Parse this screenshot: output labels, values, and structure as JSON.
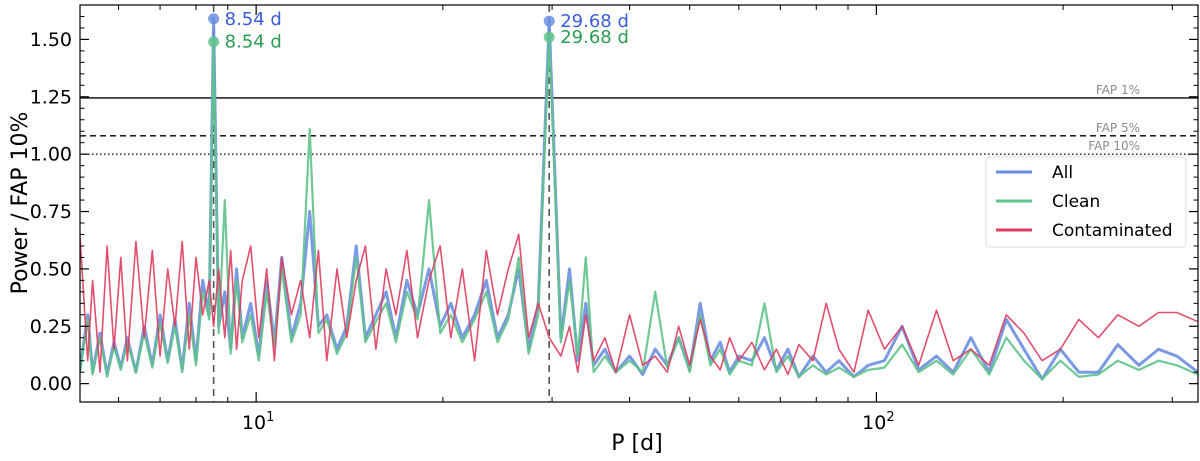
{
  "chart_data": {
    "type": "line",
    "xlabel": "P [d]",
    "ylabel": "Power / FAP 10%",
    "xscale": "log",
    "xlim": [
      5.2,
      330
    ],
    "ylim": [
      -0.08,
      1.65
    ],
    "xticks": [
      {
        "value": 10,
        "mantissa": "10",
        "exponent": "1"
      },
      {
        "value": 100,
        "mantissa": "10",
        "exponent": "2"
      }
    ],
    "yticks": [
      "0.00",
      "0.25",
      "0.50",
      "0.75",
      "1.00",
      "1.25",
      "1.50"
    ],
    "yticks_values": [
      0,
      0.25,
      0.5,
      0.75,
      1.0,
      1.25,
      1.5
    ],
    "grid": false,
    "legend_position": "right",
    "colors": {
      "All": "#6b8fe0",
      "Clean": "#5fc38a",
      "Contaminated": "#df3b5e",
      "fap": "#000000",
      "fap_label": "#8a8a8a",
      "peak_blue": "#3a5fd8",
      "peak_green": "#2a9d55"
    },
    "fap_lines": [
      {
        "label": "FAP 1%",
        "y": 1.245,
        "style": "solid"
      },
      {
        "label": "FAP 5%",
        "y": 1.08,
        "style": "dashed"
      },
      {
        "label": "FAP 10%",
        "y": 1.0,
        "style": "dotted"
      }
    ],
    "vlines": [
      8.54,
      29.68
    ],
    "peaks": [
      {
        "series": "All",
        "x": 8.54,
        "y": 1.59,
        "label": "8.54 d"
      },
      {
        "series": "Clean",
        "x": 8.54,
        "y": 1.49,
        "label": "8.54 d"
      },
      {
        "series": "All",
        "x": 29.68,
        "y": 1.58,
        "label": "29.68 d"
      },
      {
        "series": "Clean",
        "x": 29.68,
        "y": 1.51,
        "label": "29.68 d"
      }
    ],
    "series": [
      {
        "name": "All",
        "color": "#6b8fe0",
        "x": [
          5.2,
          5.35,
          5.45,
          5.6,
          5.75,
          5.9,
          6.05,
          6.2,
          6.4,
          6.6,
          6.8,
          7.0,
          7.2,
          7.4,
          7.6,
          7.8,
          8.0,
          8.2,
          8.4,
          8.54,
          8.7,
          8.9,
          9.1,
          9.3,
          9.5,
          9.8,
          10.1,
          10.4,
          10.7,
          11.0,
          11.4,
          11.8,
          12.2,
          12.6,
          13.0,
          13.5,
          14.0,
          14.5,
          15.0,
          15.6,
          16.2,
          16.8,
          17.5,
          18.2,
          19.0,
          19.8,
          20.6,
          21.5,
          22.5,
          23.5,
          24.5,
          25.5,
          26.5,
          27.5,
          28.5,
          29.68,
          31.0,
          32.0,
          33.0,
          34.0,
          35.0,
          36.5,
          38.0,
          40.0,
          42.0,
          44.0,
          46.0,
          48.0,
          50.0,
          52.0,
          54.0,
          56.0,
          58.0,
          60.0,
          63.0,
          66.0,
          69.0,
          72.0,
          75.0,
          79.0,
          83.0,
          87.0,
          92.0,
          97.0,
          103.0,
          110.0,
          117.0,
          125.0,
          133.0,
          142.0,
          152.0,
          162.0,
          173.0,
          185.0,
          198.0,
          212.0,
          228.0,
          245.0,
          265.0,
          285.0,
          305.0,
          330.0
        ],
        "y": [
          0.06,
          0.3,
          0.05,
          0.22,
          0.04,
          0.18,
          0.07,
          0.2,
          0.05,
          0.25,
          0.08,
          0.3,
          0.1,
          0.28,
          0.06,
          0.35,
          0.1,
          0.45,
          0.3,
          1.59,
          0.25,
          0.4,
          0.15,
          0.5,
          0.2,
          0.35,
          0.12,
          0.45,
          0.18,
          0.55,
          0.2,
          0.35,
          0.75,
          0.25,
          0.3,
          0.15,
          0.25,
          0.6,
          0.2,
          0.3,
          0.4,
          0.2,
          0.45,
          0.3,
          0.5,
          0.25,
          0.35,
          0.2,
          0.3,
          0.45,
          0.2,
          0.3,
          0.5,
          0.15,
          0.35,
          1.58,
          0.2,
          0.5,
          0.1,
          0.35,
          0.08,
          0.15,
          0.05,
          0.12,
          0.04,
          0.15,
          0.08,
          0.2,
          0.06,
          0.35,
          0.1,
          0.18,
          0.05,
          0.12,
          0.1,
          0.2,
          0.06,
          0.15,
          0.03,
          0.12,
          0.05,
          0.1,
          0.03,
          0.08,
          0.1,
          0.25,
          0.06,
          0.12,
          0.05,
          0.2,
          0.05,
          0.28,
          0.15,
          0.02,
          0.15,
          0.05,
          0.05,
          0.17,
          0.08,
          0.15,
          0.12,
          0.05
        ]
      },
      {
        "name": "Clean",
        "color": "#5fc38a",
        "x": [
          5.2,
          5.35,
          5.45,
          5.6,
          5.75,
          5.9,
          6.05,
          6.2,
          6.4,
          6.6,
          6.8,
          7.0,
          7.2,
          7.4,
          7.6,
          7.8,
          8.0,
          8.2,
          8.4,
          8.54,
          8.7,
          8.9,
          9.1,
          9.3,
          9.5,
          9.8,
          10.1,
          10.4,
          10.7,
          11.0,
          11.4,
          11.8,
          12.2,
          12.6,
          13.0,
          13.5,
          14.0,
          14.5,
          15.0,
          15.6,
          16.2,
          16.8,
          17.5,
          18.2,
          19.0,
          19.8,
          20.6,
          21.5,
          22.5,
          23.5,
          24.5,
          25.5,
          26.5,
          27.5,
          28.5,
          29.68,
          31.0,
          32.0,
          33.0,
          34.0,
          35.0,
          36.5,
          38.0,
          40.0,
          42.0,
          44.0,
          46.0,
          48.0,
          50.0,
          52.0,
          54.0,
          56.0,
          58.0,
          60.0,
          63.0,
          66.0,
          69.0,
          72.0,
          75.0,
          79.0,
          83.0,
          87.0,
          92.0,
          97.0,
          103.0,
          110.0,
          117.0,
          125.0,
          133.0,
          142.0,
          152.0,
          162.0,
          173.0,
          185.0,
          198.0,
          212.0,
          228.0,
          245.0,
          265.0,
          285.0,
          305.0,
          330.0
        ],
        "y": [
          0.05,
          0.28,
          0.04,
          0.2,
          0.03,
          0.16,
          0.06,
          0.18,
          0.05,
          0.22,
          0.07,
          0.26,
          0.09,
          0.25,
          0.05,
          0.3,
          0.08,
          0.4,
          0.28,
          1.49,
          0.22,
          0.8,
          0.13,
          0.45,
          0.18,
          0.3,
          0.1,
          0.4,
          0.16,
          0.5,
          0.18,
          0.3,
          1.11,
          0.22,
          0.28,
          0.13,
          0.22,
          0.55,
          0.18,
          0.27,
          0.35,
          0.18,
          0.4,
          0.28,
          0.8,
          0.22,
          0.3,
          0.18,
          0.28,
          0.4,
          0.18,
          0.28,
          0.55,
          0.13,
          0.3,
          1.51,
          0.18,
          0.45,
          0.12,
          0.55,
          0.05,
          0.12,
          0.05,
          0.1,
          0.05,
          0.4,
          0.07,
          0.2,
          0.05,
          0.3,
          0.08,
          0.15,
          0.04,
          0.1,
          0.08,
          0.35,
          0.05,
          0.12,
          0.03,
          0.08,
          0.04,
          0.07,
          0.03,
          0.06,
          0.07,
          0.17,
          0.05,
          0.1,
          0.04,
          0.15,
          0.04,
          0.2,
          0.1,
          0.02,
          0.1,
          0.03,
          0.04,
          0.1,
          0.06,
          0.1,
          0.08,
          0.04
        ]
      },
      {
        "name": "Contaminated",
        "color": "#df3b5e",
        "x": [
          5.2,
          5.35,
          5.45,
          5.6,
          5.75,
          5.9,
          6.05,
          6.2,
          6.4,
          6.6,
          6.8,
          7.0,
          7.2,
          7.4,
          7.6,
          7.8,
          8.0,
          8.2,
          8.4,
          8.54,
          8.7,
          8.9,
          9.1,
          9.3,
          9.5,
          9.8,
          10.1,
          10.4,
          10.7,
          11.0,
          11.4,
          11.8,
          12.2,
          12.6,
          13.0,
          13.5,
          14.0,
          14.5,
          15.0,
          15.6,
          16.2,
          16.8,
          17.5,
          18.2,
          19.0,
          19.8,
          20.6,
          21.5,
          22.5,
          23.5,
          24.5,
          25.5,
          26.5,
          27.5,
          28.5,
          29.68,
          31.0,
          32.0,
          33.0,
          34.0,
          35.0,
          36.5,
          38.0,
          40.0,
          42.0,
          44.0,
          46.0,
          48.0,
          50.0,
          52.0,
          54.0,
          56.0,
          58.0,
          60.0,
          63.0,
          66.0,
          69.0,
          72.0,
          75.0,
          79.0,
          83.0,
          87.0,
          92.0,
          97.0,
          103.0,
          110.0,
          117.0,
          125.0,
          133.0,
          142.0,
          152.0,
          162.0,
          173.0,
          185.0,
          198.0,
          212.0,
          228.0,
          245.0,
          265.0,
          285.0,
          305.0,
          330.0
        ],
        "y": [
          0.64,
          0.1,
          0.45,
          0.05,
          0.6,
          0.15,
          0.55,
          0.1,
          0.62,
          0.2,
          0.58,
          0.12,
          0.5,
          0.25,
          0.62,
          0.15,
          0.55,
          0.3,
          0.45,
          0.25,
          0.5,
          0.2,
          0.58,
          0.15,
          0.45,
          0.6,
          0.2,
          0.5,
          0.1,
          0.55,
          0.3,
          0.45,
          0.2,
          0.58,
          0.1,
          0.5,
          0.2,
          0.45,
          0.6,
          0.15,
          0.5,
          0.3,
          0.58,
          0.2,
          0.45,
          0.6,
          0.2,
          0.5,
          0.1,
          0.58,
          0.3,
          0.5,
          0.65,
          0.2,
          0.35,
          0.2,
          0.12,
          0.25,
          0.05,
          0.3,
          0.1,
          0.2,
          0.05,
          0.3,
          0.08,
          0.12,
          0.05,
          0.25,
          0.08,
          0.28,
          0.12,
          0.06,
          0.2,
          0.1,
          0.18,
          0.06,
          0.15,
          0.04,
          0.17,
          0.1,
          0.35,
          0.15,
          0.05,
          0.32,
          0.15,
          0.25,
          0.08,
          0.32,
          0.1,
          0.15,
          0.08,
          0.3,
          0.22,
          0.1,
          0.15,
          0.28,
          0.2,
          0.3,
          0.25,
          0.31,
          0.31,
          0.27
        ]
      }
    ]
  }
}
